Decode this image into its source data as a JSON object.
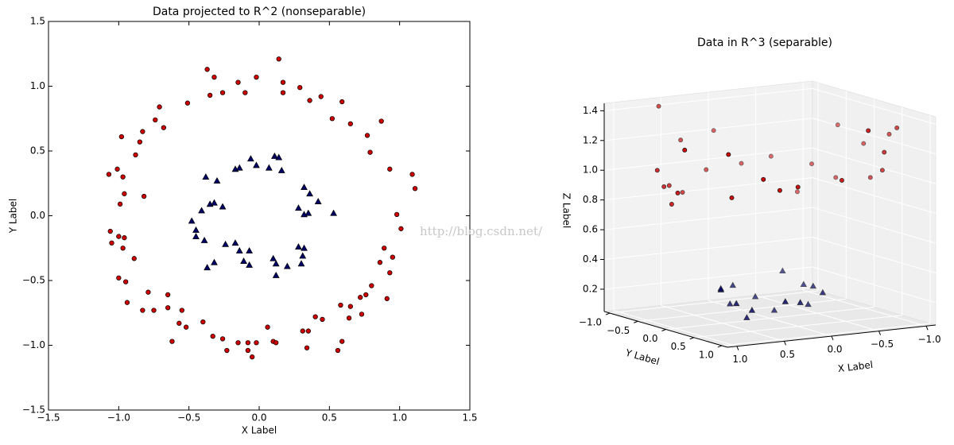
{
  "chart_data": [
    {
      "type": "scatter",
      "title": "Data projected to R^2 (nonseparable)",
      "x_label": "X Label",
      "y_label": "Y Label",
      "xlim": [
        -1.5,
        1.5
      ],
      "ylim": [
        -1.5,
        1.5
      ],
      "xticks": [
        {
          "value": -1.5,
          "label": "−1.5"
        },
        {
          "value": -1,
          "label": "−1.0"
        },
        {
          "value": -0.5,
          "label": "−0.5"
        },
        {
          "value": 0,
          "label": "0.0"
        },
        0.5,
        {
          "value": 1,
          "label": "1.0"
        },
        1.5
      ],
      "yticks": [
        {
          "value": -1.5,
          "label": "−1.5"
        },
        {
          "value": -1,
          "label": "−1.0"
        },
        {
          "value": -0.5,
          "label": "−0.5"
        },
        {
          "value": 0,
          "label": "0.0"
        },
        0.5,
        {
          "value": 1,
          "label": "1.0"
        },
        1.5
      ],
      "series": [
        {
          "color": "#cc0000",
          "marker": "circle",
          "x": [
            -0.37,
            0.14,
            -0.32,
            -0.02,
            -0.15,
            0.17,
            0.29,
            -0.1,
            -0.26,
            -0.35,
            0.17,
            0.36,
            0.44,
            0.59,
            -0.51,
            -0.71,
            -0.74,
            -0.68,
            -0.83,
            -0.85,
            -0.98,
            -0.88,
            0.52,
            0.65,
            0.77,
            0.87,
            0.79,
            0.93,
            1.09,
            1.11,
            -1.07,
            -1.01,
            -0.97,
            -0.96,
            -0.99,
            -0.82,
            -1.06,
            -1.0,
            -0.96,
            -0.97,
            -1.05,
            -0.89,
            0.98,
            1.01,
            0.89,
            0.95,
            0.86,
            0.93,
            0.8,
            0.76,
            0.91,
            -1.0,
            -0.95,
            -0.79,
            -0.94,
            -0.83,
            -0.75,
            -0.65,
            -0.65,
            -0.55,
            -0.52,
            -0.57,
            -0.62,
            -0.4,
            -0.33,
            -0.26,
            -0.23,
            -0.15,
            -0.08,
            -0.02,
            -0.08,
            -0.05,
            0.1,
            0.12,
            0.06,
            0.31,
            0.35,
            0.34,
            0.4,
            0.45,
            0.58,
            0.65,
            0.64,
            0.73,
            0.72,
            0.59,
            0.56
          ],
          "y": [
            1.13,
            1.21,
            1.07,
            1.07,
            1.03,
            1.03,
            0.99,
            0.95,
            0.95,
            0.93,
            0.95,
            0.89,
            0.92,
            0.88,
            0.87,
            0.84,
            0.74,
            0.68,
            0.65,
            0.57,
            0.61,
            0.47,
            0.75,
            0.71,
            0.62,
            0.73,
            0.49,
            0.36,
            0.32,
            0.21,
            0.32,
            0.36,
            0.3,
            0.17,
            0.09,
            0.15,
            -0.12,
            -0.16,
            -0.17,
            -0.25,
            -0.21,
            -0.33,
            0.01,
            -0.1,
            -0.25,
            -0.32,
            -0.36,
            -0.44,
            -0.54,
            -0.61,
            -0.64,
            -0.48,
            -0.51,
            -0.59,
            -0.67,
            -0.73,
            -0.73,
            -0.61,
            -0.71,
            -0.73,
            -0.86,
            -0.83,
            -0.97,
            -0.82,
            -0.93,
            -0.95,
            -1.04,
            -0.98,
            -0.98,
            -0.98,
            -1.04,
            -1.09,
            -0.97,
            -0.98,
            -0.86,
            -0.89,
            -0.89,
            -1.02,
            -0.78,
            -0.8,
            -0.69,
            -0.7,
            -0.79,
            -0.76,
            -0.63,
            -0.97,
            -1.04
          ]
        },
        {
          "color": "#000066",
          "marker": "triangle",
          "x": [
            -0.38,
            -0.3,
            -0.17,
            -0.14,
            -0.06,
            -0.02,
            0.11,
            0.14,
            0.07,
            0.16,
            0.32,
            0.36,
            0.42,
            0.53,
            0.35,
            0.32,
            0.28,
            -0.35,
            -0.32,
            -0.26,
            -0.48,
            -0.45,
            -0.45,
            -0.39,
            -0.37,
            -0.32,
            -0.24,
            -0.17,
            -0.14,
            -0.07,
            -0.11,
            -0.07,
            0.1,
            0.12,
            0.12,
            0.2,
            0.28,
            0.32,
            0.31,
            0.3,
            -0.41
          ],
          "y": [
            0.3,
            0.27,
            0.36,
            0.37,
            0.44,
            0.39,
            0.46,
            0.45,
            0.37,
            0.35,
            0.22,
            0.17,
            0.11,
            0.02,
            0.02,
            0.01,
            0.06,
            0.09,
            0.1,
            0.07,
            -0.04,
            -0.11,
            -0.16,
            -0.19,
            -0.4,
            -0.36,
            -0.22,
            -0.21,
            -0.27,
            -0.27,
            -0.35,
            -0.38,
            -0.33,
            -0.37,
            -0.46,
            -0.39,
            -0.24,
            -0.25,
            -0.31,
            -0.37,
            0.04
          ]
        }
      ]
    },
    {
      "type": "scatter3d",
      "title": "Data in R^3 (separable)",
      "x_label": "X Label",
      "y_label": "Y Label",
      "z_label": "Z Label",
      "xlim": [
        -1.1,
        1.1
      ],
      "ylim": [
        -1.1,
        1.1
      ],
      "zlim": [
        0.05,
        1.45
      ],
      "xticks": [
        {
          "value": 1,
          "label": "1.0"
        },
        0.5,
        {
          "value": 0,
          "label": "0.0"
        },
        {
          "value": -0.5,
          "label": "−0.5"
        },
        {
          "value": -1,
          "label": "−1.0"
        }
      ],
      "yticks": [
        {
          "value": -1,
          "label": "−1.0"
        },
        {
          "value": -0.5,
          "label": "−0.5"
        },
        {
          "value": 0,
          "label": "0.0"
        },
        0.5,
        {
          "value": 1,
          "label": "1.0"
        }
      ],
      "zticks": [
        0.2,
        0.4,
        0.6,
        0.8,
        {
          "value": 1,
          "label": "1.0"
        },
        1.2,
        1.4
      ],
      "series": [
        {
          "color": "#cc0000",
          "marker": "circle",
          "x": [
            -0.37,
            0.29,
            0.59,
            -0.71,
            -0.98,
            0.87,
            1.09,
            -1.07,
            -0.96,
            -1.06,
            0.98,
            0.89,
            0.8,
            -1.0,
            -0.79,
            -0.65,
            -0.52,
            -0.26,
            -0.05,
            0.1,
            0.34,
            0.45,
            0.65,
            0.56,
            -0.15,
            0.44,
            -0.85,
            0.77,
            -0.89,
            0.93
          ],
          "y": [
            1.13,
            0.99,
            0.88,
            0.84,
            0.61,
            0.73,
            0.32,
            0.32,
            0.17,
            -0.12,
            0.01,
            -0.25,
            -0.54,
            -0.48,
            -0.59,
            -0.61,
            -0.86,
            -0.95,
            -1.09,
            -0.97,
            -1.02,
            -0.8,
            -0.7,
            -1.04,
            1.03,
            0.92,
            0.57,
            0.62,
            -0.33,
            -0.44
          ],
          "z": [
            1.41,
            1.06,
            1.12,
            1.21,
            1.33,
            1.29,
            1.29,
            1.25,
            0.95,
            1.14,
            0.96,
            0.85,
            0.93,
            1.23,
            0.97,
            0.79,
            1.01,
            0.97,
            1.19,
            0.95,
            1.16,
            0.84,
            0.91,
            1.4,
            1.08,
            1.04,
            1.05,
            0.98,
            0.9,
            1.06
          ]
        },
        {
          "color": "#000066",
          "marker": "triangle",
          "x": [
            -0.38,
            -0.06,
            0.11,
            0.32,
            0.53,
            0.28,
            -0.35,
            -0.48,
            -0.45,
            -0.37,
            -0.17,
            -0.07,
            0.12,
            0.28,
            0.3,
            0.42
          ],
          "y": [
            0.3,
            0.44,
            0.46,
            0.22,
            0.02,
            0.06,
            0.09,
            -0.04,
            -0.16,
            -0.4,
            -0.21,
            -0.38,
            -0.46,
            -0.24,
            -0.37,
            0.11
          ],
          "z": [
            0.23,
            0.2,
            0.22,
            0.15,
            0.28,
            0.08,
            0.13,
            0.23,
            0.23,
            0.3,
            0.07,
            0.15,
            0.23,
            0.14,
            0.23,
            0.19
          ]
        }
      ]
    }
  ],
  "watermark": "http://blog.csdn.net/"
}
